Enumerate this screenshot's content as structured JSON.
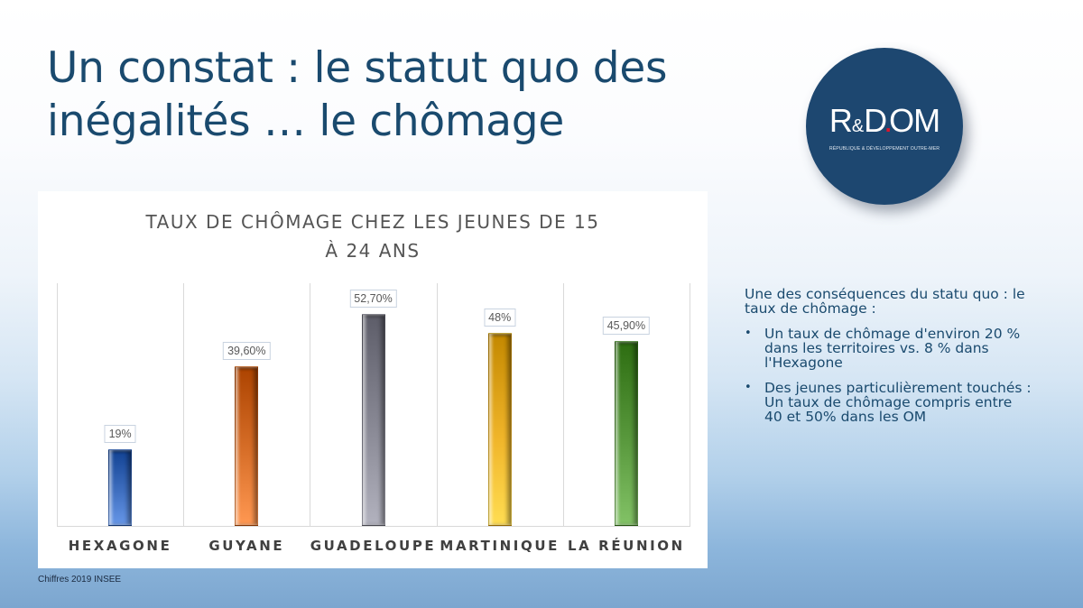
{
  "slide": {
    "title_line1": "Un constat : le statut quo des",
    "title_line2": "inégalités … le chômage",
    "source": "Chiffres 2019 INSEE"
  },
  "logo": {
    "mark_r": "R",
    "mark_amp": "&",
    "mark_d": "D",
    "mark_dot": ".",
    "mark_om": "OM",
    "subtitle": "RÉPUBLIQUE & DÉVELOPPEMENT OUTRE-MER",
    "colors": {
      "background": "#1d4770",
      "dot": "#e0142b"
    }
  },
  "side_panel": {
    "intro": "Une des conséquences du statu quo : le taux de chômage :",
    "bullets": [
      {
        "marker": "•",
        "text": "Un taux de chômage d'environ 20 % dans les territoires vs. 8 % dans l'Hexagone"
      },
      {
        "marker": "•",
        "text": "Des jeunes particulièrement touchés : Un taux de chômage compris entre 40 et 50% dans les OM"
      }
    ]
  },
  "chart_data": {
    "type": "bar",
    "title_line1": "TAUX DE CHÔMAGE CHEZ LES JEUNES DE 15",
    "title_line2": "À 24 ANS",
    "title": "TAUX DE CHÔMAGE CHEZ LES JEUNES DE 15 À 24 ANS",
    "xlabel": "",
    "ylabel": "",
    "ylim": [
      0,
      60
    ],
    "grid": "vertical category separators",
    "legend": "none",
    "categories": [
      "HEXAGONE",
      "GUYANE",
      "GUADELOUPE",
      "MARTINIQUE",
      "LA RÉUNION"
    ],
    "values": [
      19,
      39.6,
      52.7,
      48,
      45.9
    ],
    "data_labels": [
      "19%",
      "39,60%",
      "52,70%",
      "48%",
      "45,90%"
    ],
    "colors": [
      "#3f6fc0",
      "#d9702a",
      "#8a8a96",
      "#f0b52a",
      "#5a9a3e"
    ],
    "unit": "%"
  }
}
